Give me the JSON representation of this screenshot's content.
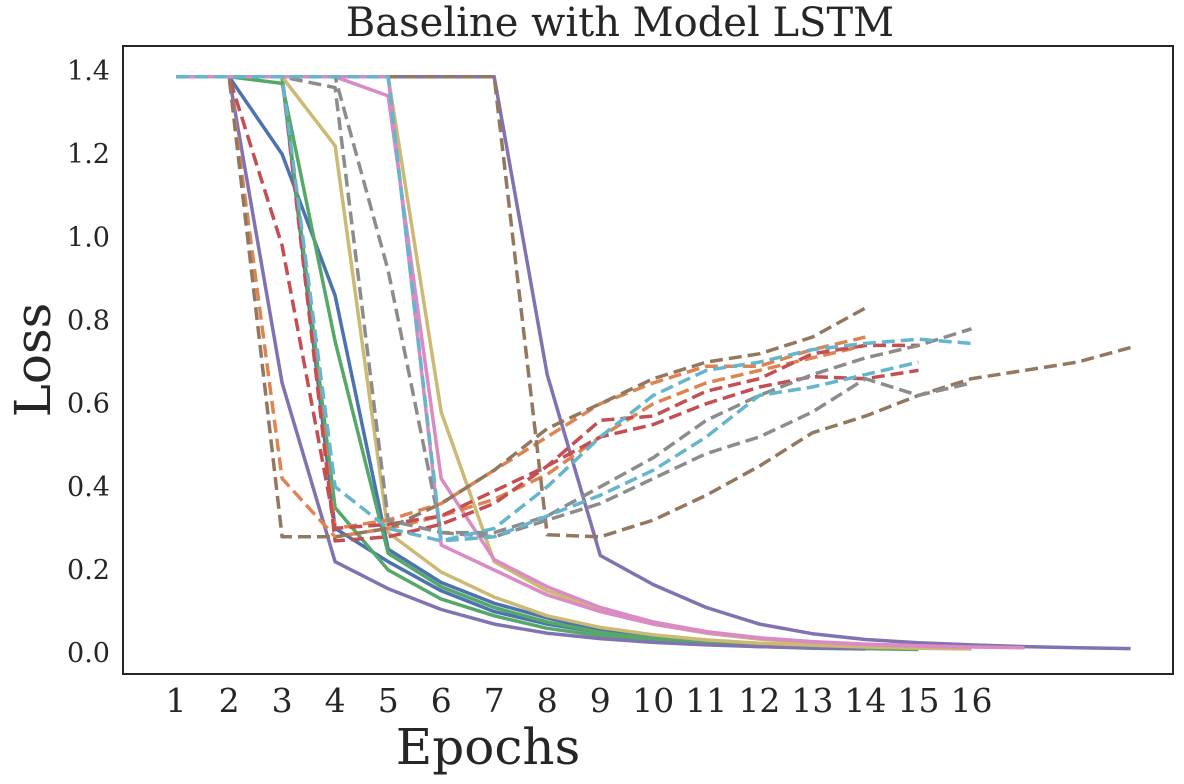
{
  "chart_data": {
    "type": "line",
    "title": "Baseline with Model LSTM",
    "xlabel": "Epochs",
    "ylabel": "Loss",
    "x_ticks": [
      "1",
      "2",
      "3",
      "4",
      "5",
      "6",
      "7",
      "8",
      "9",
      "10",
      "11",
      "12",
      "13",
      "14",
      "15",
      "16"
    ],
    "y_ticks": [
      "0.0",
      "0.2",
      "0.4",
      "0.6",
      "0.8",
      "1.0",
      "1.2",
      "1.4"
    ],
    "xlim": [
      0.0,
      19.8
    ],
    "ylim": [
      -0.05,
      1.46
    ],
    "grid": false,
    "legend": "none",
    "series": [
      {
        "color": "#4c72b0",
        "style": "solid",
        "x": [
          1,
          2,
          3,
          4,
          5,
          6,
          7,
          8,
          9,
          10,
          11,
          12,
          13,
          14
        ],
        "y": [
          1.386,
          1.386,
          1.2,
          0.86,
          0.25,
          0.17,
          0.12,
          0.085,
          0.055,
          0.038,
          0.027,
          0.02,
          0.015,
          0.012
        ]
      },
      {
        "color": "#4c72b0",
        "style": "solid",
        "x": [
          1,
          2,
          3,
          4,
          5,
          6,
          7,
          8,
          9,
          10,
          11,
          12,
          13,
          14,
          15
        ],
        "y": [
          1.386,
          1.386,
          1.386,
          0.3,
          0.22,
          0.15,
          0.1,
          0.07,
          0.05,
          0.036,
          0.026,
          0.02,
          0.015,
          0.012,
          0.01
        ]
      },
      {
        "color": "#55a868",
        "style": "solid",
        "x": [
          1,
          2,
          3,
          4,
          5,
          6,
          7,
          8,
          9,
          10,
          11,
          12,
          13,
          14,
          15
        ],
        "y": [
          1.386,
          1.386,
          1.37,
          0.75,
          0.24,
          0.16,
          0.11,
          0.075,
          0.05,
          0.035,
          0.025,
          0.019,
          0.014,
          0.011,
          0.009
        ]
      },
      {
        "color": "#55a868",
        "style": "solid",
        "x": [
          1,
          2,
          3,
          4,
          5,
          6,
          7,
          8,
          9,
          10,
          11,
          12,
          13,
          14
        ],
        "y": [
          1.386,
          1.386,
          1.386,
          0.35,
          0.2,
          0.13,
          0.09,
          0.06,
          0.042,
          0.03,
          0.022,
          0.016,
          0.012,
          0.01
        ]
      },
      {
        "color": "#8172b2",
        "style": "solid",
        "x": [
          1,
          2,
          3,
          4,
          5,
          6,
          7,
          8,
          9,
          10,
          11,
          12,
          13,
          14
        ],
        "y": [
          1.386,
          1.386,
          0.65,
          0.22,
          0.155,
          0.105,
          0.07,
          0.048,
          0.035,
          0.026,
          0.02,
          0.016,
          0.013,
          0.011
        ]
      },
      {
        "color": "#8172b2",
        "style": "solid",
        "x": [
          1,
          2,
          3,
          4,
          5,
          6,
          7,
          8,
          9,
          10,
          11,
          12,
          13,
          14,
          15,
          16,
          17,
          18,
          19
        ],
        "y": [
          1.386,
          1.386,
          1.386,
          1.386,
          1.386,
          1.386,
          1.386,
          0.67,
          0.235,
          0.165,
          0.11,
          0.07,
          0.047,
          0.033,
          0.025,
          0.02,
          0.016,
          0.013,
          0.011
        ]
      },
      {
        "color": "#ccb974",
        "style": "solid",
        "x": [
          1,
          2,
          3,
          4,
          5,
          6,
          7,
          8,
          9,
          10,
          11,
          12,
          13,
          14,
          15,
          16
        ],
        "y": [
          1.386,
          1.386,
          1.386,
          1.22,
          0.29,
          0.195,
          0.135,
          0.09,
          0.062,
          0.044,
          0.032,
          0.024,
          0.019,
          0.015,
          0.012,
          0.01
        ]
      },
      {
        "color": "#ccb974",
        "style": "solid",
        "x": [
          1,
          2,
          3,
          4,
          5,
          6,
          7,
          8,
          9,
          10,
          11,
          12,
          13,
          14,
          15
        ],
        "y": [
          1.386,
          1.386,
          1.386,
          1.386,
          1.386,
          0.58,
          0.22,
          0.15,
          0.105,
          0.07,
          0.048,
          0.034,
          0.025,
          0.019,
          0.015
        ]
      },
      {
        "color": "#da8bc3",
        "style": "solid",
        "x": [
          1,
          2,
          3,
          4,
          5,
          6,
          7,
          8,
          9,
          10,
          11,
          12,
          13,
          14,
          15,
          16,
          17
        ],
        "y": [
          1.386,
          1.386,
          1.386,
          1.386,
          1.34,
          0.42,
          0.225,
          0.16,
          0.11,
          0.075,
          0.052,
          0.037,
          0.028,
          0.022,
          0.018,
          0.015,
          0.013
        ]
      },
      {
        "color": "#da8bc3",
        "style": "solid",
        "x": [
          1,
          2,
          3,
          4,
          5,
          6,
          7,
          8,
          9,
          10,
          11,
          12,
          13,
          14,
          15,
          16
        ],
        "y": [
          1.386,
          1.386,
          1.386,
          1.386,
          1.386,
          0.26,
          0.2,
          0.14,
          0.1,
          0.07,
          0.05,
          0.036,
          0.027,
          0.021,
          0.017,
          0.014
        ]
      },
      {
        "color": "#dd8452",
        "style": "dashed",
        "x": [
          1,
          2,
          3,
          4,
          5,
          6,
          7,
          8,
          9,
          10,
          11,
          12,
          13,
          14
        ],
        "y": [
          1.386,
          1.386,
          0.42,
          0.28,
          0.3,
          0.33,
          0.37,
          0.43,
          0.52,
          0.6,
          0.65,
          0.68,
          0.71,
          0.74
        ]
      },
      {
        "color": "#dd8452",
        "style": "dashed",
        "x": [
          1,
          2,
          3,
          4,
          5,
          6,
          7,
          8,
          9,
          10,
          11,
          12,
          13,
          14
        ],
        "y": [
          1.386,
          1.386,
          1.386,
          0.3,
          0.32,
          0.36,
          0.44,
          0.52,
          0.6,
          0.65,
          0.69,
          0.69,
          0.73,
          0.76
        ]
      },
      {
        "color": "#c44e52",
        "style": "dashed",
        "x": [
          1,
          2,
          3,
          4,
          5,
          6,
          7,
          8,
          9,
          10,
          11,
          12,
          13,
          14,
          15
        ],
        "y": [
          1.386,
          1.386,
          0.98,
          0.3,
          0.31,
          0.33,
          0.39,
          0.45,
          0.52,
          0.55,
          0.6,
          0.64,
          0.665,
          0.66,
          0.68
        ]
      },
      {
        "color": "#c44e52",
        "style": "dashed",
        "x": [
          1,
          2,
          3,
          4,
          5,
          6,
          7,
          8,
          9,
          10,
          11,
          12,
          13,
          14,
          15
        ],
        "y": [
          1.386,
          1.386,
          1.386,
          0.27,
          0.28,
          0.31,
          0.36,
          0.45,
          0.56,
          0.57,
          0.63,
          0.66,
          0.72,
          0.74,
          0.74
        ]
      },
      {
        "color": "#937860",
        "style": "dashed",
        "x": [
          1,
          2,
          3,
          4,
          5,
          6,
          7,
          8,
          9,
          10,
          11,
          12,
          13,
          14
        ],
        "y": [
          1.386,
          1.386,
          0.28,
          0.28,
          0.3,
          0.36,
          0.44,
          0.54,
          0.6,
          0.66,
          0.7,
          0.72,
          0.76,
          0.83
        ]
      },
      {
        "color": "#937860",
        "style": "dashed",
        "x": [
          1,
          2,
          3,
          4,
          5,
          6,
          7,
          8,
          9,
          10,
          11,
          12,
          13,
          14,
          15,
          16,
          17,
          18,
          19
        ],
        "y": [
          1.386,
          1.386,
          1.386,
          1.386,
          1.386,
          1.386,
          1.386,
          0.285,
          0.28,
          0.32,
          0.38,
          0.45,
          0.53,
          0.57,
          0.62,
          0.66,
          0.68,
          0.7,
          0.735
        ]
      },
      {
        "color": "#8c8c8c",
        "style": "dashed",
        "x": [
          1,
          2,
          3,
          4,
          5,
          6,
          7,
          8,
          9,
          10,
          11,
          12,
          13,
          14,
          15,
          16
        ],
        "y": [
          1.386,
          1.386,
          1.386,
          1.36,
          0.32,
          0.29,
          0.29,
          0.33,
          0.4,
          0.47,
          0.56,
          0.62,
          0.67,
          0.71,
          0.74,
          0.78
        ]
      },
      {
        "color": "#8c8c8c",
        "style": "dashed",
        "x": [
          1,
          2,
          3,
          4,
          5,
          6,
          7,
          8,
          9,
          10,
          11,
          12,
          13,
          14,
          15,
          16
        ],
        "y": [
          1.386,
          1.386,
          1.386,
          1.386,
          0.92,
          0.29,
          0.28,
          0.32,
          0.36,
          0.42,
          0.48,
          0.52,
          0.58,
          0.66,
          0.62,
          0.65
        ]
      },
      {
        "color": "#64b5cd",
        "style": "dashed",
        "x": [
          1,
          2,
          3,
          4,
          5,
          6,
          7,
          8,
          9,
          10,
          11,
          12,
          13,
          14,
          15
        ],
        "y": [
          1.386,
          1.386,
          1.386,
          0.4,
          0.3,
          0.27,
          0.28,
          0.33,
          0.38,
          0.44,
          0.52,
          0.62,
          0.64,
          0.67,
          0.7
        ]
      },
      {
        "color": "#64b5cd",
        "style": "dashed",
        "x": [
          1,
          2,
          3,
          4,
          5,
          6,
          7,
          8,
          9,
          10,
          11,
          12,
          13,
          14,
          15,
          16
        ],
        "y": [
          1.386,
          1.386,
          1.386,
          1.386,
          1.386,
          0.27,
          0.3,
          0.4,
          0.52,
          0.62,
          0.68,
          0.7,
          0.73,
          0.745,
          0.755,
          0.745
        ]
      }
    ]
  }
}
